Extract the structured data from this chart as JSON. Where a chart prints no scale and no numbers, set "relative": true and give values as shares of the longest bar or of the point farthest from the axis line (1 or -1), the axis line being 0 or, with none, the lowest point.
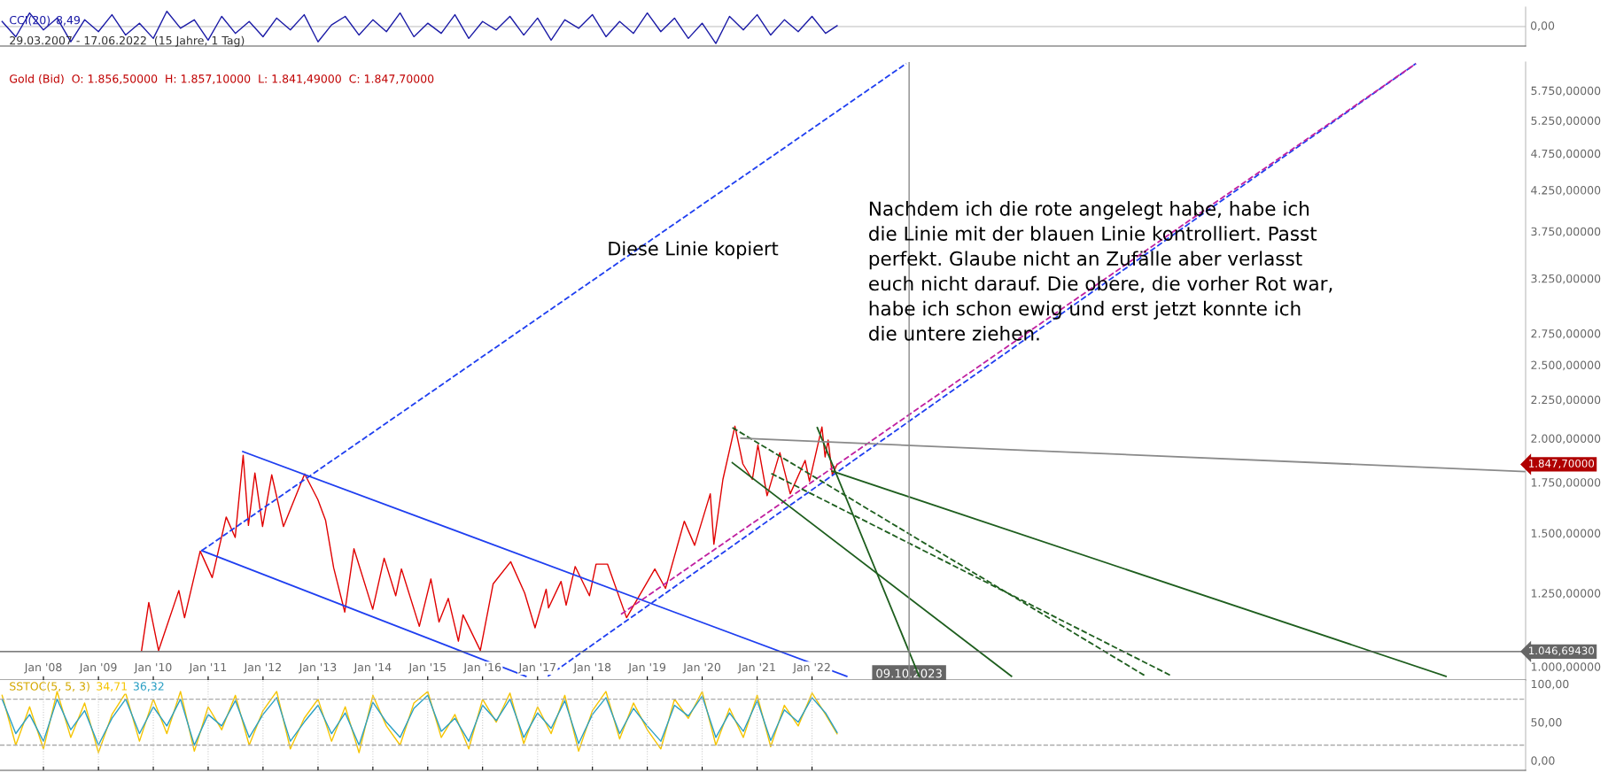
{
  "chart_data": [
    {
      "type": "line",
      "title": "CCI(20)",
      "relative": true,
      "tick_labels": false,
      "xlim": [
        "2007-03-18",
        "2035-01-01"
      ],
      "x": [
        "2007-04-01",
        "2007-07-01",
        "2007-10-01",
        "2008-01-01",
        "2008-04-01",
        "2008-07-01",
        "2008-10-01",
        "2009-01-01",
        "2009-04-01",
        "2009-07-01",
        "2009-10-01",
        "2010-01-01",
        "2010-04-01",
        "2010-07-01",
        "2010-10-01",
        "2011-01-01",
        "2011-04-01",
        "2011-07-01",
        "2011-10-01",
        "2012-01-01",
        "2012-04-01",
        "2012-07-01",
        "2012-10-01",
        "2013-01-01",
        "2013-04-01",
        "2013-07-01",
        "2013-10-01",
        "2014-01-01",
        "2014-04-01",
        "2014-07-01",
        "2014-10-01",
        "2015-01-01",
        "2015-04-01",
        "2015-07-01",
        "2015-10-01",
        "2016-01-01",
        "2016-04-01",
        "2016-07-01",
        "2016-10-01",
        "2017-01-01",
        "2017-04-01",
        "2017-07-01",
        "2017-10-01",
        "2018-01-01",
        "2018-04-01",
        "2018-07-01",
        "2018-10-01",
        "2019-01-01",
        "2019-04-01",
        "2019-07-01",
        "2019-10-01",
        "2020-01-01",
        "2020-04-01",
        "2020-07-01",
        "2020-10-01",
        "2021-01-01",
        "2021-04-01",
        "2021-07-01",
        "2021-10-01",
        "2022-01-01",
        "2022-04-01",
        "2022-06-17"
      ],
      "series": [
        {
          "name": "8,49",
          "color": "#1a1aa6",
          "values": [
            0.3,
            -0.6,
            0.8,
            -0.2,
            0.5,
            -0.9,
            0.4,
            -0.3,
            0.7,
            -0.5,
            0.2,
            -0.7,
            0.9,
            -0.1,
            0.4,
            -0.8,
            0.6,
            -0.4,
            0.3,
            -0.6,
            0.5,
            -0.2,
            0.7,
            -0.9,
            0.1,
            0.6,
            -0.5,
            0.4,
            -0.3,
            0.8,
            -0.6,
            0.2,
            -0.4,
            0.7,
            -0.7,
            0.3,
            -0.2,
            0.6,
            -0.5,
            0.5,
            -0.8,
            0.4,
            -0.1,
            0.7,
            -0.6,
            0.3,
            -0.4,
            0.8,
            -0.3,
            0.5,
            -0.7,
            0.2,
            -1.0,
            0.6,
            -0.2,
            0.7,
            -0.5,
            0.4,
            -0.3,
            0.6,
            -0.4,
            0.05
          ]
        }
      ],
      "annotations": [
        "0,00",
        "29.03.2007 - 17.06.2022  (15 Jahre, 1 Tag)"
      ]
    },
    {
      "type": "line",
      "title": "Gold (Bid)  O: 1.856,50000  H: 1.857,10000  L: 1.841,49000  C: 1.847,70000",
      "log": true,
      "xlim": [
        "2007-03-18",
        "2035-01-01"
      ],
      "ylim": [
        960,
        6270
      ],
      "xticks": [
        {
          "value": "2008-01-01",
          "label": "Jan '08"
        },
        {
          "value": "2009-01-01",
          "label": "Jan '09"
        },
        {
          "value": "2010-01-01",
          "label": "Jan '10"
        },
        {
          "value": "2011-01-01",
          "label": "Jan '11"
        },
        {
          "value": "2012-01-01",
          "label": "Jan '12"
        },
        {
          "value": "2013-01-01",
          "label": "Jan '13"
        },
        {
          "value": "2014-01-01",
          "label": "Jan '14"
        },
        {
          "value": "2015-01-01",
          "label": "Jan '15"
        },
        {
          "value": "2016-01-01",
          "label": "Jan '16"
        },
        {
          "value": "2017-01-01",
          "label": "Jan '17"
        },
        {
          "value": "2018-01-01",
          "label": "Jan '18"
        },
        {
          "value": "2019-01-01",
          "label": "Jan '19"
        },
        {
          "value": "2020-01-01",
          "label": "Jan '20"
        },
        {
          "value": "2021-01-01",
          "label": "Jan '21"
        },
        {
          "value": "2022-01-01",
          "label": "Jan '22"
        }
      ],
      "yticks": [
        {
          "value": 1000,
          "label": "1.000,00000"
        },
        {
          "value": 1250,
          "label": "1.250,00000"
        },
        {
          "value": 1500,
          "label": "1.500,00000"
        },
        {
          "value": 1750,
          "label": "1.750,00000"
        },
        {
          "value": 2000,
          "label": "2.000,00000"
        },
        {
          "value": 2250,
          "label": "2.250,00000"
        },
        {
          "value": 2500,
          "label": "2.500,00000"
        },
        {
          "value": 2750,
          "label": "2.750,00000"
        },
        {
          "value": 3250,
          "label": "3.250,00000"
        },
        {
          "value": 3750,
          "label": "3.750,00000"
        },
        {
          "value": 4250,
          "label": "4.250,00000"
        },
        {
          "value": 4750,
          "label": "4.750,00000"
        },
        {
          "value": 5250,
          "label": "5.250,00000"
        },
        {
          "value": 5750,
          "label": "5.750,00000"
        }
      ],
      "series": [
        {
          "color": "#e00000",
          "x": [
            "2009-10-15",
            "2009-12-02",
            "2010-02-05",
            "2010-06-20",
            "2010-07-28",
            "2010-11-09",
            "2011-01-28",
            "2011-05-01",
            "2011-06-30",
            "2011-08-22",
            "2011-09-26",
            "2011-11-08",
            "2011-12-29",
            "2012-02-28",
            "2012-05-16",
            "2012-10-04",
            "2012-12-31",
            "2013-02-20",
            "2013-04-15",
            "2013-06-28",
            "2013-08-28",
            "2013-12-31",
            "2014-03-17",
            "2014-06-02",
            "2014-07-10",
            "2014-11-06",
            "2015-01-22",
            "2015-03-17",
            "2015-05-18",
            "2015-07-24",
            "2015-08-24",
            "2015-12-17",
            "2016-03-11",
            "2016-07-06",
            "2016-10-07",
            "2016-12-15",
            "2017-02-27",
            "2017-03-15",
            "2017-06-06",
            "2017-07-10",
            "2017-09-08",
            "2017-12-12",
            "2018-01-25",
            "2018-04-11",
            "2018-08-16",
            "2019-02-20",
            "2019-05-02",
            "2019-09-04",
            "2019-11-12",
            "2020-02-24",
            "2020-03-19",
            "2020-05-18",
            "2020-08-06",
            "2020-09-28",
            "2020-11-30",
            "2021-01-06",
            "2021-03-08",
            "2021-06-01",
            "2021-08-09",
            "2021-11-16",
            "2021-12-15",
            "2022-03-08",
            "2022-03-29",
            "2022-04-18",
            "2022-05-16",
            "2022-06-17"
          ],
          "values": [
            1050,
            1215,
            1050,
            1260,
            1160,
            1420,
            1310,
            1575,
            1480,
            1900,
            1535,
            1800,
            1530,
            1790,
            1530,
            1795,
            1660,
            1560,
            1350,
            1180,
            1430,
            1190,
            1390,
            1240,
            1345,
            1130,
            1305,
            1145,
            1230,
            1080,
            1170,
            1050,
            1285,
            1375,
            1250,
            1125,
            1265,
            1195,
            1295,
            1205,
            1355,
            1240,
            1365,
            1365,
            1160,
            1345,
            1268,
            1555,
            1445,
            1690,
            1450,
            1765,
            2075,
            1850,
            1765,
            1960,
            1680,
            1915,
            1690,
            1870,
            1755,
            2070,
            1890,
            1990,
            1790,
            1848
          ]
        },
        {
          "color": "#1f3ff0",
          "line_style": "solid",
          "x": [
            "2011-08-20",
            "2022-08-20"
          ],
          "values": [
            1921,
            971
          ]
        },
        {
          "color": "#1f3ff0",
          "line_style": "solid",
          "x": [
            "2010-11-20",
            "2016-10-15"
          ],
          "values": [
            1422,
            971
          ]
        },
        {
          "color": "#1f3ff0",
          "line_style": "dashed",
          "x": [
            "2010-11-20",
            "2023-09-20"
          ],
          "values": [
            1422,
            6240
          ]
        },
        {
          "color": "#1f3ff0",
          "line_style": "dashed",
          "x": [
            "2017-03-10",
            "2033-01-01"
          ],
          "values": [
            971,
            6240
          ]
        },
        {
          "color": "#c020a0",
          "line_style": "dashed",
          "x": [
            "2018-07-10",
            "2033-01-01"
          ],
          "values": [
            1172,
            6240
          ]
        },
        {
          "color": "#1e5e1e",
          "line_style": "dashed",
          "x": [
            "2020-07-20",
            "2028-02-01"
          ],
          "values": [
            2066,
            971
          ]
        },
        {
          "color": "#1e5e1e",
          "line_style": "dashed",
          "x": [
            "2021-04-05",
            "2028-07-25"
          ],
          "values": [
            1797,
            971
          ]
        },
        {
          "color": "#1e5e1e",
          "line_style": "solid",
          "x": [
            "2020-07-20",
            "2025-08-20"
          ],
          "values": [
            1857,
            971
          ]
        },
        {
          "color": "#1e5e1e",
          "line_style": "solid",
          "x": [
            "2022-02-05",
            "2023-12-15"
          ],
          "values": [
            2066,
            971
          ]
        },
        {
          "color": "#1e5e1e",
          "line_style": "solid",
          "x": [
            "2022-05-15",
            "2033-07-20"
          ],
          "values": [
            1810,
            971
          ]
        },
        {
          "color": "#8a8a8a",
          "line_style": "solid",
          "x": [
            "2020-09-15",
            "2035-01-01"
          ],
          "values": [
            2000,
            1808
          ]
        }
      ],
      "ref_lines": [
        {
          "axis": "y",
          "value": 1046.6943,
          "label": "1.046,69430",
          "color": "#555555"
        },
        {
          "axis": "x",
          "value": "2023-10-09",
          "label": "09.10.2023",
          "color": "#8a8a8a"
        }
      ],
      "annotations": [
        "Diese Linie kopiert",
        "Nachdem ich die rote angelegt habe, habe ich\ndie Linie mit der blauen Linie kontrolliert. Passt\nperfekt. Glaube nicht an Zufälle aber verlasst\neuch nicht darauf. Die obere, die vorher Rot war,\nhabe ich schon ewig und erst jetzt konnte ich\ndie untere ziehen.",
        "1.847,70000"
      ]
    },
    {
      "type": "line",
      "title": "SSTOC(5, 5, 3)",
      "tick_labels": "y",
      "grid": "x",
      "xlim": [
        "2007-03-18",
        "2035-01-01"
      ],
      "ylim": [
        -13,
        105
      ],
      "xticks": [
        {
          "value": "2008-01-01",
          "label": null
        },
        {
          "value": "2009-01-01",
          "label": null
        },
        {
          "value": "2010-01-01",
          "label": null
        },
        {
          "value": "2011-01-01",
          "label": null
        },
        {
          "value": "2012-01-01",
          "label": null
        },
        {
          "value": "2013-01-01",
          "label": null
        },
        {
          "value": "2014-01-01",
          "label": null
        },
        {
          "value": "2015-01-01",
          "label": null
        },
        {
          "value": "2016-01-01",
          "label": null
        },
        {
          "value": "2017-01-01",
          "label": null
        },
        {
          "value": "2018-01-01",
          "label": null
        },
        {
          "value": "2019-01-01",
          "label": null
        },
        {
          "value": "2020-01-01",
          "label": null
        },
        {
          "value": "2021-01-01",
          "label": null
        },
        {
          "value": "2022-01-01",
          "label": null
        }
      ],
      "yticks": [
        {
          "value": 0,
          "label": "0,00"
        },
        {
          "value": 50,
          "label": "50,00"
        },
        {
          "value": 100,
          "label": "100,00"
        }
      ],
      "x": [
        "2007-04-01",
        "2007-07-01",
        "2007-10-01",
        "2008-01-01",
        "2008-04-01",
        "2008-07-01",
        "2008-10-01",
        "2009-01-01",
        "2009-04-01",
        "2009-07-01",
        "2009-10-01",
        "2010-01-01",
        "2010-04-01",
        "2010-07-01",
        "2010-10-01",
        "2011-01-01",
        "2011-04-01",
        "2011-07-01",
        "2011-10-01",
        "2012-01-01",
        "2012-04-01",
        "2012-07-01",
        "2012-10-01",
        "2013-01-01",
        "2013-04-01",
        "2013-07-01",
        "2013-10-01",
        "2014-01-01",
        "2014-04-01",
        "2014-07-01",
        "2014-10-01",
        "2015-01-01",
        "2015-04-01",
        "2015-07-01",
        "2015-10-01",
        "2016-01-01",
        "2016-04-01",
        "2016-07-01",
        "2016-10-01",
        "2017-01-01",
        "2017-04-01",
        "2017-07-01",
        "2017-10-01",
        "2018-01-01",
        "2018-04-01",
        "2018-07-01",
        "2018-10-01",
        "2019-01-01",
        "2019-04-01",
        "2019-07-01",
        "2019-10-01",
        "2020-01-01",
        "2020-04-01",
        "2020-07-01",
        "2020-10-01",
        "2021-01-01",
        "2021-04-01",
        "2021-07-01",
        "2021-10-01",
        "2022-01-01",
        "2022-04-01",
        "2022-06-17"
      ],
      "series": [
        {
          "name": "34,71",
          "color": "#f5c400",
          "values": [
            85,
            20,
            70,
            15,
            90,
            30,
            75,
            10,
            60,
            88,
            25,
            80,
            35,
            90,
            12,
            70,
            40,
            85,
            20,
            65,
            90,
            15,
            55,
            80,
            25,
            70,
            10,
            85,
            45,
            20,
            75,
            90,
            30,
            60,
            15,
            80,
            50,
            88,
            22,
            70,
            35,
            85,
            12,
            65,
            90,
            28,
            75,
            40,
            15,
            80,
            55,
            90,
            20,
            68,
            30,
            85,
            18,
            72,
            45,
            88,
            60,
            34.71
          ]
        },
        {
          "name": "36,32",
          "color": "#2a9fc4",
          "values": [
            80,
            35,
            60,
            25,
            80,
            40,
            65,
            20,
            55,
            80,
            35,
            70,
            45,
            80,
            20,
            60,
            45,
            78,
            30,
            60,
            82,
            25,
            50,
            72,
            35,
            62,
            20,
            76,
            50,
            30,
            68,
            85,
            38,
            55,
            25,
            72,
            52,
            80,
            30,
            62,
            42,
            78,
            22,
            60,
            82,
            35,
            68,
            45,
            25,
            72,
            58,
            84,
            30,
            62,
            38,
            78,
            26,
            66,
            50,
            82,
            62,
            36.32
          ]
        }
      ],
      "ref_lines": [
        {
          "axis": "y",
          "value": 80,
          "color": "#aaaaaa",
          "line_style": "dashed"
        },
        {
          "axis": "y",
          "value": 20,
          "color": "#aaaaaa",
          "line_style": "dashed"
        }
      ]
    }
  ]
}
